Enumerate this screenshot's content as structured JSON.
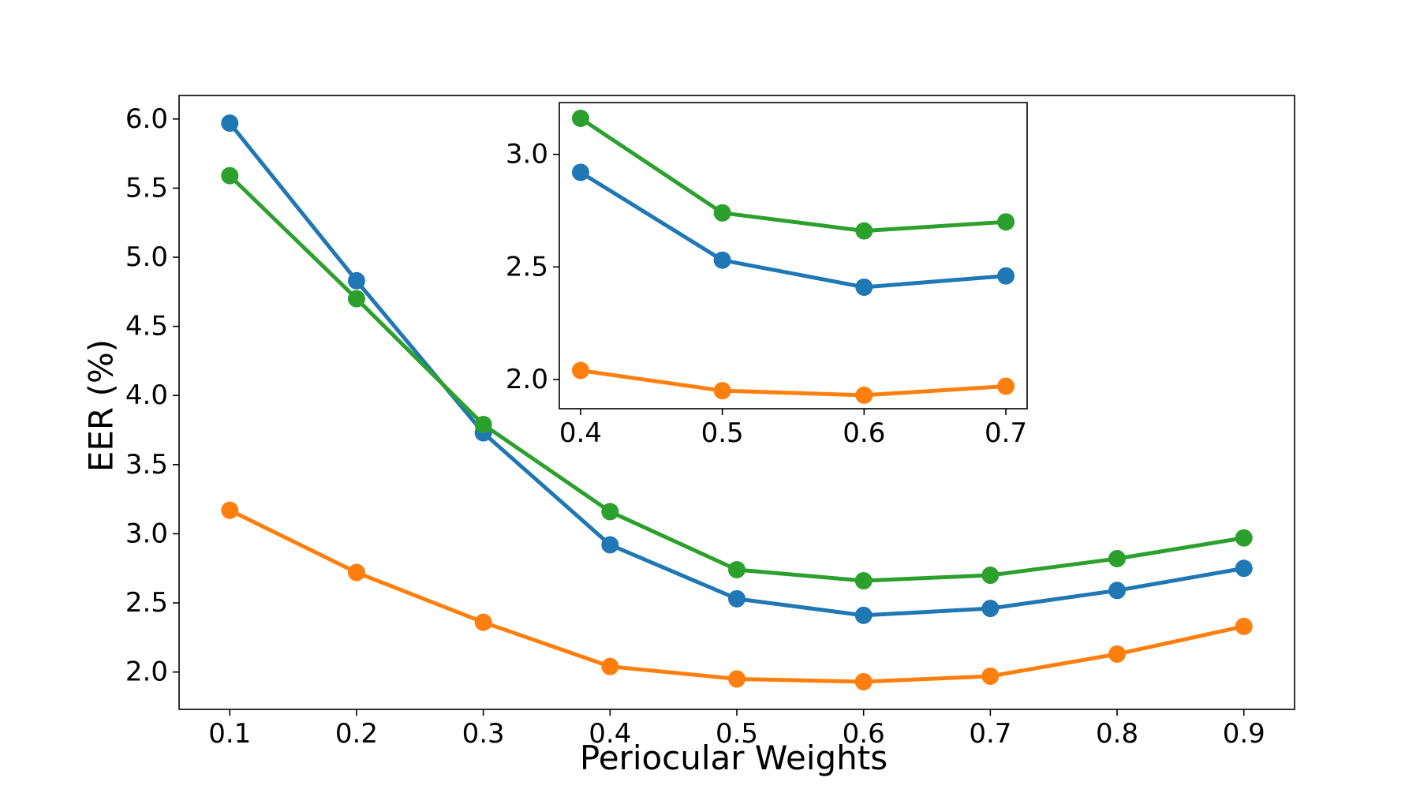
{
  "chart_data": [
    {
      "id": "main",
      "type": "line",
      "title": "",
      "xlabel": "Periocular Weights",
      "ylabel": "EER (%)",
      "x": [
        0.1,
        0.2,
        0.3,
        0.4,
        0.5,
        0.6,
        0.7,
        0.8,
        0.9
      ],
      "x_tick_labels": [
        "0.1",
        "0.2",
        "0.3",
        "0.4",
        "0.5",
        "0.6",
        "0.7",
        "0.8",
        "0.9"
      ],
      "y_ticks": [
        2.0,
        2.5,
        3.0,
        3.5,
        4.0,
        4.5,
        5.0,
        5.5,
        6.0
      ],
      "y_tick_labels": [
        "2.0",
        "2.5",
        "3.0",
        "3.5",
        "4.0",
        "4.5",
        "5.0",
        "5.5",
        "6.0"
      ],
      "xlim": [
        0.06,
        0.94
      ],
      "ylim": [
        1.73,
        6.17
      ],
      "grid": false,
      "series": [
        {
          "name": "blue",
          "color": "#1f77b4",
          "values": [
            5.97,
            4.83,
            3.73,
            2.92,
            2.53,
            2.41,
            2.46,
            2.59,
            2.75
          ]
        },
        {
          "name": "orange",
          "color": "#ff7f0e",
          "values": [
            3.17,
            2.72,
            2.36,
            2.04,
            1.95,
            1.93,
            1.97,
            2.13,
            2.33
          ]
        },
        {
          "name": "green",
          "color": "#2ca02c",
          "values": [
            5.59,
            4.7,
            3.79,
            3.16,
            2.74,
            2.66,
            2.7,
            2.82,
            2.97
          ]
        }
      ]
    },
    {
      "id": "inset",
      "type": "line",
      "title": "",
      "xlabel": "",
      "ylabel": "",
      "x": [
        0.4,
        0.5,
        0.6,
        0.7
      ],
      "x_tick_labels": [
        "0.4",
        "0.5",
        "0.6",
        "0.7"
      ],
      "y_ticks": [
        2.0,
        2.5,
        3.0
      ],
      "y_tick_labels": [
        "2.0",
        "2.5",
        "3.0"
      ],
      "xlim": [
        0.385,
        0.715
      ],
      "ylim": [
        1.87,
        3.23
      ],
      "grid": false,
      "series": [
        {
          "name": "blue",
          "color": "#1f77b4",
          "values": [
            2.92,
            2.53,
            2.41,
            2.46
          ]
        },
        {
          "name": "orange",
          "color": "#ff7f0e",
          "values": [
            2.04,
            1.95,
            1.93,
            1.97
          ]
        },
        {
          "name": "green",
          "color": "#2ca02c",
          "values": [
            3.16,
            2.74,
            2.66,
            2.7
          ]
        }
      ]
    }
  ]
}
